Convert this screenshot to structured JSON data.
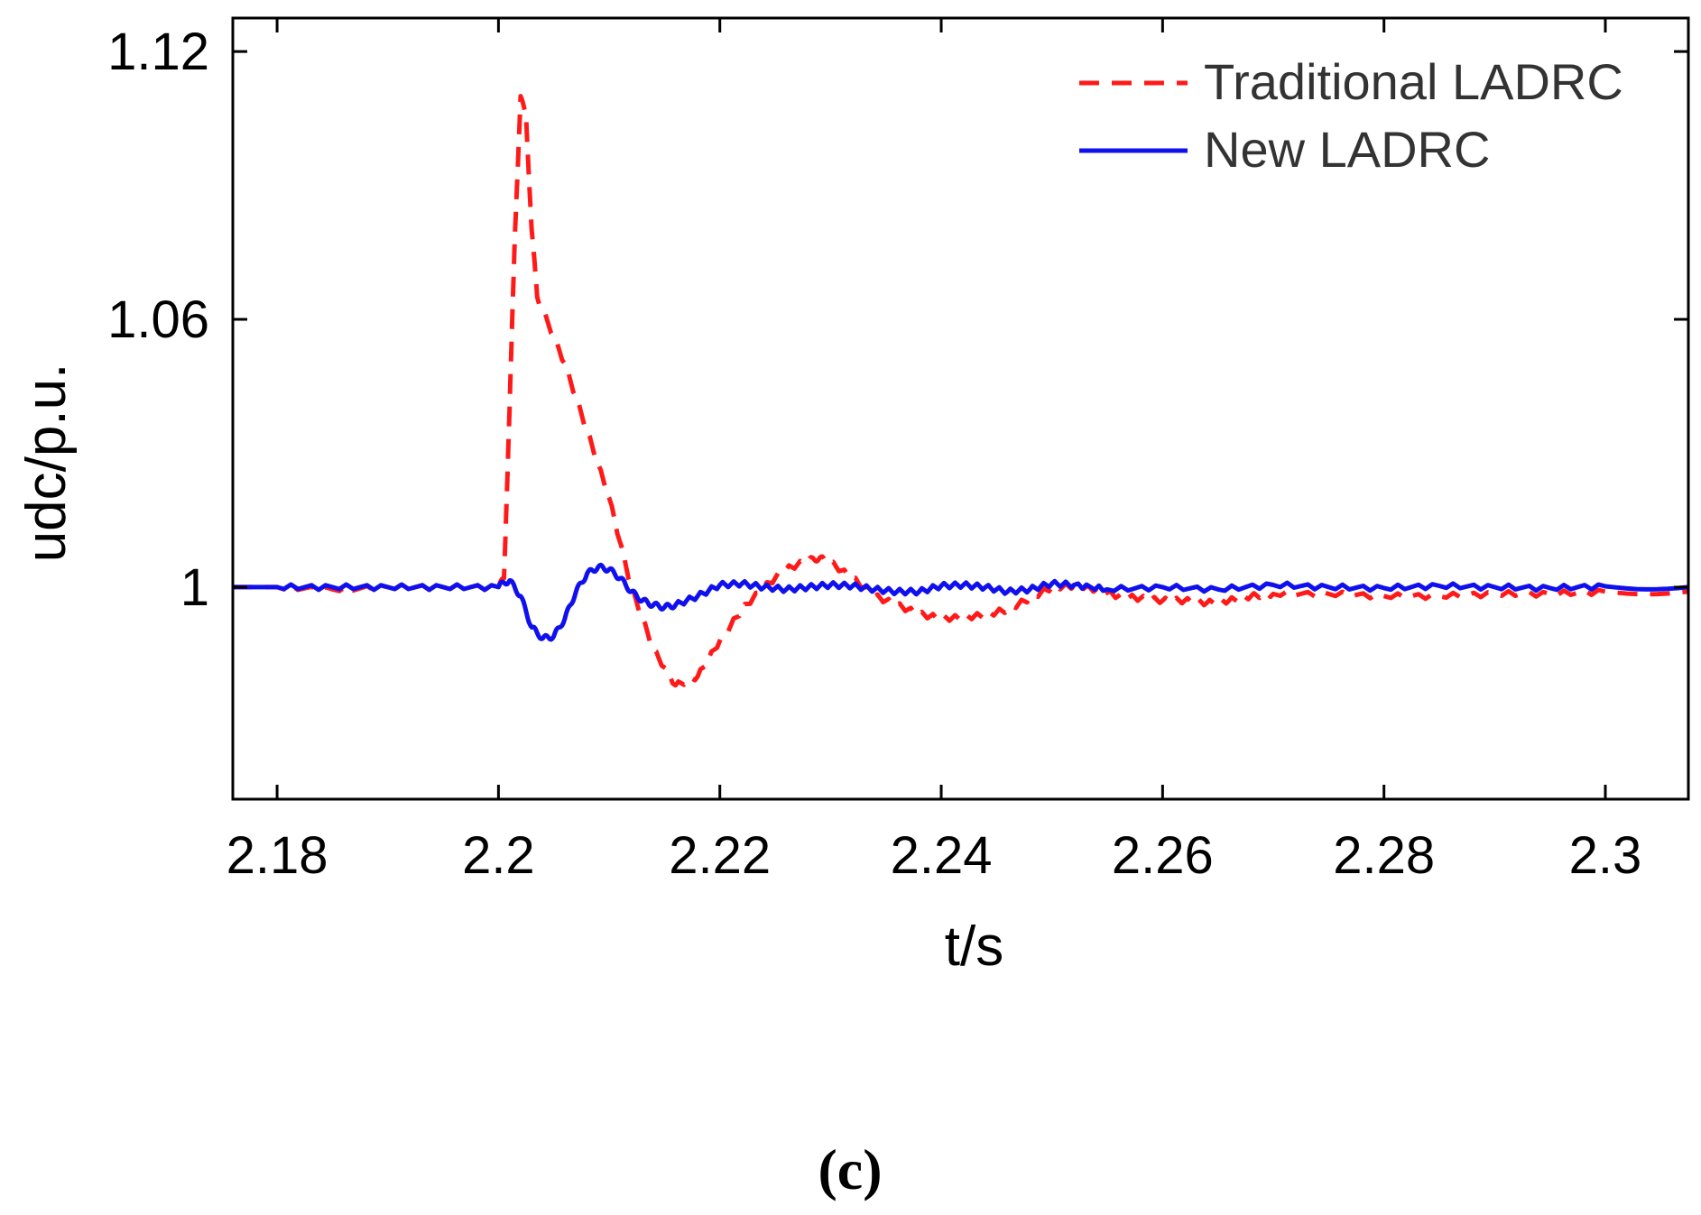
{
  "chart_data": {
    "type": "line",
    "title": "",
    "xlabel": "t/s",
    "ylabel": "udc/p.u.",
    "xlim": [
      2.176,
      2.3075
    ],
    "ylim": [
      0.9525,
      1.1275
    ],
    "xticks": [
      2.18,
      2.2,
      2.22,
      2.24,
      2.26,
      2.28,
      2.3
    ],
    "xtick_labels": [
      "2.18",
      "2.2",
      "2.22",
      "2.24",
      "2.26",
      "2.28",
      "2.3"
    ],
    "yticks": [
      1.0,
      1.06,
      1.12
    ],
    "ytick_labels": [
      "1",
      "1.06",
      "1.12"
    ],
    "grid": false,
    "legend_position": "top-right",
    "caption": "(c)",
    "series": [
      {
        "name": "Traditional LADRC",
        "color": "#ff1a1a",
        "style": "dashed",
        "x": [
          2.176,
          2.18,
          2.185,
          2.19,
          2.195,
          2.2,
          2.2005,
          2.201,
          2.2015,
          2.202,
          2.2025,
          2.203,
          2.2035,
          2.204,
          2.206,
          2.208,
          2.21,
          2.212,
          2.214,
          2.216,
          2.218,
          2.22,
          2.222,
          2.224,
          2.226,
          2.228,
          2.229,
          2.23,
          2.232,
          2.234,
          2.236,
          2.238,
          2.24,
          2.242,
          2.244,
          2.246,
          2.248,
          2.25,
          2.252,
          2.254,
          2.256,
          2.258,
          2.26,
          2.262,
          2.264,
          2.266,
          2.268,
          2.27,
          2.275,
          2.28,
          2.285,
          2.29,
          2.295,
          2.3,
          2.3075
        ],
        "y": [
          1.0,
          1.0,
          0.9995,
          1.0,
          1.0,
          1.0,
          1.002,
          1.04,
          1.08,
          1.11,
          1.105,
          1.08,
          1.065,
          1.062,
          1.05,
          1.035,
          1.02,
          1.0,
          0.986,
          0.978,
          0.98,
          0.988,
          0.995,
          1.0,
          1.004,
          1.006,
          1.0065,
          1.0055,
          1.002,
          0.998,
          0.996,
          0.994,
          0.993,
          0.9932,
          0.9938,
          0.995,
          0.9975,
          1.0,
          1.0003,
          0.9995,
          0.998,
          0.9975,
          0.997,
          0.997,
          0.9965,
          0.997,
          0.998,
          0.9985,
          0.9985,
          0.998,
          0.998,
          0.9985,
          0.9985,
          0.999,
          0.999
        ]
      },
      {
        "name": "New LADRC",
        "color": "#1010ee",
        "style": "solid",
        "x": [
          2.176,
          2.18,
          2.185,
          2.19,
          2.195,
          2.2,
          2.2005,
          2.201,
          2.202,
          2.203,
          2.204,
          2.205,
          2.206,
          2.207,
          2.208,
          2.209,
          2.21,
          2.211,
          2.212,
          2.213,
          2.214,
          2.215,
          2.216,
          2.218,
          2.22,
          2.222,
          2.224,
          2.226,
          2.228,
          2.23,
          2.232,
          2.234,
          2.236,
          2.238,
          2.24,
          2.242,
          2.244,
          2.246,
          2.248,
          2.25,
          2.252,
          2.255,
          2.26,
          2.265,
          2.27,
          2.275,
          2.28,
          2.285,
          2.29,
          2.295,
          2.3,
          2.3075
        ],
        "y": [
          1.0,
          1.0,
          1.0,
          1.0,
          1.0,
          1.0,
          1.001,
          1.0015,
          0.998,
          0.991,
          0.9885,
          0.989,
          0.993,
          0.999,
          1.003,
          1.0045,
          1.004,
          1.002,
          0.999,
          0.997,
          0.996,
          0.9955,
          0.996,
          0.998,
          1.0005,
          1.0008,
          1.0,
          0.9995,
          1.0,
          1.0005,
          1.0003,
          0.9995,
          0.999,
          0.999,
          1.0003,
          1.0005,
          1.0,
          0.999,
          0.9995,
          1.0008,
          1.0005,
          0.9995,
          1.0,
          0.9995,
          1.0005,
          1.0,
          0.9998,
          1.0003,
          1.0,
          0.9998,
          1.0002,
          1.0
        ]
      }
    ]
  }
}
